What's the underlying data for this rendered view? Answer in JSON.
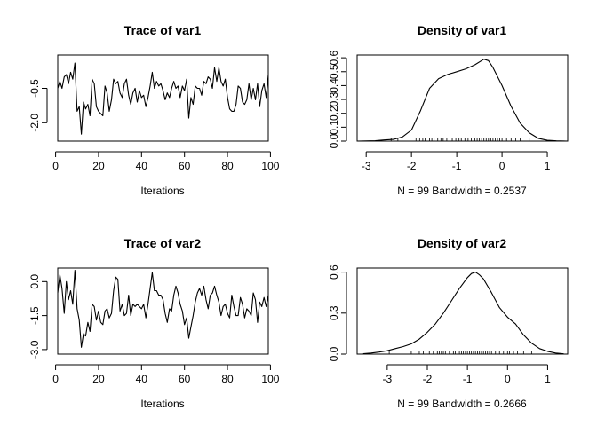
{
  "chart_data": [
    {
      "type": "line",
      "title": "Trace of var1",
      "xlabel": "Iterations",
      "ylabel": "",
      "xlim": [
        1,
        99
      ],
      "ylim": [
        -2.8,
        0.95
      ],
      "xticks": [
        0,
        20,
        40,
        60,
        80,
        100
      ],
      "yticks": [
        -0.5,
        -2.0
      ],
      "x": [
        1,
        2,
        3,
        4,
        5,
        6,
        7,
        8,
        9,
        10,
        11,
        12,
        13,
        14,
        15,
        16,
        17,
        18,
        19,
        20,
        21,
        22,
        23,
        24,
        25,
        26,
        27,
        28,
        29,
        30,
        31,
        32,
        33,
        34,
        35,
        36,
        37,
        38,
        39,
        40,
        41,
        42,
        43,
        44,
        45,
        46,
        47,
        48,
        49,
        50,
        51,
        52,
        53,
        54,
        55,
        56,
        57,
        58,
        59,
        60,
        61,
        62,
        63,
        64,
        65,
        66,
        67,
        68,
        69,
        70,
        71,
        72,
        73,
        74,
        75,
        76,
        77,
        78,
        79,
        80,
        81,
        82,
        83,
        84,
        85,
        86,
        87,
        88,
        89,
        90,
        91,
        92,
        93,
        94,
        95,
        96,
        97,
        98,
        99
      ],
      "values": [
        -0.5,
        -0.2,
        -0.5,
        0.0,
        0.1,
        -0.3,
        0.2,
        -0.1,
        0.6,
        -1.5,
        -1.3,
        -2.5,
        -1.1,
        -1.4,
        -1.2,
        -1.7,
        -0.1,
        -0.3,
        -1.3,
        -1.5,
        -1.6,
        -1.7,
        -0.4,
        -0.7,
        -1.5,
        -1.0,
        -0.1,
        -0.3,
        -0.2,
        -0.7,
        -0.9,
        -0.3,
        -0.1,
        -0.8,
        -1.2,
        -0.7,
        -0.5,
        -1.1,
        -0.6,
        -0.9,
        -0.8,
        -1.3,
        -0.9,
        -0.4,
        0.2,
        -0.5,
        -0.2,
        -0.4,
        -0.3,
        -0.6,
        -1.0,
        -0.7,
        -0.9,
        -0.5,
        -0.2,
        -0.5,
        -0.4,
        -0.9,
        -0.4,
        -0.6,
        -0.1,
        -1.8,
        -0.9,
        -1.2,
        -0.4,
        -0.5,
        -0.5,
        -0.8,
        -0.2,
        -0.3,
        0.0,
        -0.1,
        -0.5,
        0.4,
        -0.2,
        0.4,
        -0.2,
        -0.4,
        -0.1,
        -0.9,
        -1.4,
        -1.5,
        -1.5,
        -1.2,
        -0.4,
        -0.5,
        -1.1,
        -1.2,
        -1.0,
        -0.3,
        -1.0,
        -0.5,
        -1.0,
        -0.3,
        -1.3,
        -0.6,
        -0.3,
        -0.9,
        0.1
      ]
    },
    {
      "type": "area",
      "title": "Density of var1",
      "xlabel": "N = 99   Bandwidth = 0.2537",
      "ylabel": "",
      "xlim": [
        -3.2,
        1.45
      ],
      "ylim": [
        0,
        0.62
      ],
      "xticks": [
        -3,
        -2,
        -1,
        0,
        1
      ],
      "yticks": [
        0.0,
        0.1,
        0.2,
        0.3,
        0.4,
        0.5,
        0.6
      ],
      "x": [
        -3.2,
        -3.0,
        -2.8,
        -2.6,
        -2.4,
        -2.2,
        -2.0,
        -1.8,
        -1.6,
        -1.4,
        -1.2,
        -1.0,
        -0.8,
        -0.6,
        -0.4,
        -0.3,
        -0.2,
        0.0,
        0.2,
        0.4,
        0.6,
        0.8,
        1.0,
        1.2,
        1.45
      ],
      "values": [
        0.0,
        0.001,
        0.003,
        0.008,
        0.012,
        0.03,
        0.08,
        0.22,
        0.38,
        0.45,
        0.48,
        0.5,
        0.52,
        0.55,
        0.59,
        0.58,
        0.53,
        0.4,
        0.25,
        0.13,
        0.06,
        0.02,
        0.006,
        0.002,
        0.0
      ],
      "rug": [
        -2.45,
        -2.3,
        -1.9,
        -1.82,
        -1.75,
        -1.7,
        -1.6,
        -1.55,
        -1.5,
        -1.42,
        -1.35,
        -1.3,
        -1.22,
        -1.15,
        -1.1,
        -1.02,
        -0.95,
        -0.9,
        -0.82,
        -0.75,
        -0.68,
        -0.6,
        -0.55,
        -0.5,
        -0.45,
        -0.4,
        -0.35,
        -0.3,
        -0.25,
        -0.2,
        -0.15,
        -0.1,
        -0.05,
        0.0,
        0.1,
        0.2,
        0.3,
        0.4,
        0.6
      ]
    },
    {
      "type": "line",
      "title": "Trace of var2",
      "xlabel": "Iterations",
      "ylabel": "",
      "xlim": [
        1,
        99
      ],
      "ylim": [
        -3.2,
        0.6
      ],
      "xticks": [
        0,
        20,
        40,
        60,
        80,
        100
      ],
      "yticks": [
        0.0,
        -1.5,
        -3.0
      ],
      "x": [
        1,
        2,
        3,
        4,
        5,
        6,
        7,
        8,
        9,
        10,
        11,
        12,
        13,
        14,
        15,
        16,
        17,
        18,
        19,
        20,
        21,
        22,
        23,
        24,
        25,
        26,
        27,
        28,
        29,
        30,
        31,
        32,
        33,
        34,
        35,
        36,
        37,
        38,
        39,
        40,
        41,
        42,
        43,
        44,
        45,
        46,
        47,
        48,
        49,
        50,
        51,
        52,
        53,
        54,
        55,
        56,
        57,
        58,
        59,
        60,
        61,
        62,
        63,
        64,
        65,
        66,
        67,
        68,
        69,
        70,
        71,
        72,
        73,
        74,
        75,
        76,
        77,
        78,
        79,
        80,
        81,
        82,
        83,
        84,
        85,
        86,
        87,
        88,
        89,
        90,
        91,
        92,
        93,
        94,
        95,
        96,
        97,
        98,
        99
      ],
      "values": [
        -0.5,
        0.3,
        -0.3,
        -1.4,
        0.0,
        -0.8,
        -0.4,
        -1.0,
        0.5,
        -1.2,
        -1.7,
        -2.9,
        -2.3,
        -2.4,
        -1.8,
        -2.2,
        -1.0,
        -1.1,
        -1.7,
        -1.3,
        -1.8,
        -1.9,
        -1.3,
        -1.2,
        -1.6,
        -1.4,
        -0.4,
        0.2,
        0.1,
        -1.3,
        -1.0,
        -1.5,
        -1.4,
        -0.6,
        -1.5,
        -1.0,
        -1.1,
        -1.0,
        -1.1,
        -1.2,
        -1.0,
        -1.6,
        -1.0,
        -0.3,
        0.4,
        -0.4,
        -0.4,
        -0.6,
        -0.6,
        -0.8,
        -1.4,
        -1.8,
        -1.2,
        -1.3,
        -0.6,
        -0.2,
        -0.5,
        -1.0,
        -1.3,
        -1.9,
        -1.6,
        -2.5,
        -2.0,
        -1.5,
        -0.9,
        -0.5,
        -0.3,
        -0.6,
        -0.2,
        -0.8,
        -1.2,
        -0.6,
        -0.5,
        -0.2,
        -0.6,
        -0.9,
        -1.5,
        -1.1,
        -1.0,
        -1.4,
        -1.6,
        -0.6,
        -1.1,
        -1.5,
        -1.5,
        -0.7,
        -1.0,
        -1.6,
        -1.2,
        -1.3,
        -1.5,
        -0.5,
        -0.8,
        -1.8,
        -0.9,
        -1.1,
        -0.7,
        -1.1,
        -0.6
      ]
    },
    {
      "type": "area",
      "title": "Density of var2",
      "xlabel": "N = 99   Bandwidth = 0.2666",
      "ylabel": "",
      "xlim": [
        -3.75,
        1.5
      ],
      "ylim": [
        0,
        0.63
      ],
      "xticks": [
        -3,
        -2,
        -1,
        0,
        1
      ],
      "yticks": [
        0.0,
        0.3,
        0.6
      ],
      "x": [
        -3.6,
        -3.4,
        -3.2,
        -3.0,
        -2.8,
        -2.6,
        -2.4,
        -2.2,
        -2.0,
        -1.8,
        -1.6,
        -1.4,
        -1.2,
        -1.0,
        -0.9,
        -0.8,
        -0.7,
        -0.6,
        -0.5,
        -0.4,
        -0.2,
        0.0,
        0.2,
        0.4,
        0.6,
        0.8,
        1.0,
        1.2,
        1.4
      ],
      "values": [
        0.003,
        0.008,
        0.015,
        0.025,
        0.04,
        0.055,
        0.075,
        0.11,
        0.16,
        0.22,
        0.3,
        0.39,
        0.48,
        0.56,
        0.59,
        0.6,
        0.58,
        0.55,
        0.5,
        0.45,
        0.34,
        0.27,
        0.22,
        0.14,
        0.08,
        0.04,
        0.02,
        0.008,
        0.002
      ],
      "rug": [
        -2.95,
        -2.4,
        -2.2,
        -2.1,
        -1.95,
        -1.85,
        -1.75,
        -1.7,
        -1.65,
        -1.6,
        -1.55,
        -1.45,
        -1.35,
        -1.3,
        -1.2,
        -1.15,
        -1.1,
        -1.05,
        -1.0,
        -0.95,
        -0.9,
        -0.85,
        -0.8,
        -0.75,
        -0.7,
        -0.65,
        -0.6,
        -0.55,
        -0.5,
        -0.45,
        -0.4,
        -0.3,
        -0.2,
        -0.1,
        0.0,
        0.05,
        0.15,
        0.25,
        0.4,
        0.6
      ]
    }
  ]
}
